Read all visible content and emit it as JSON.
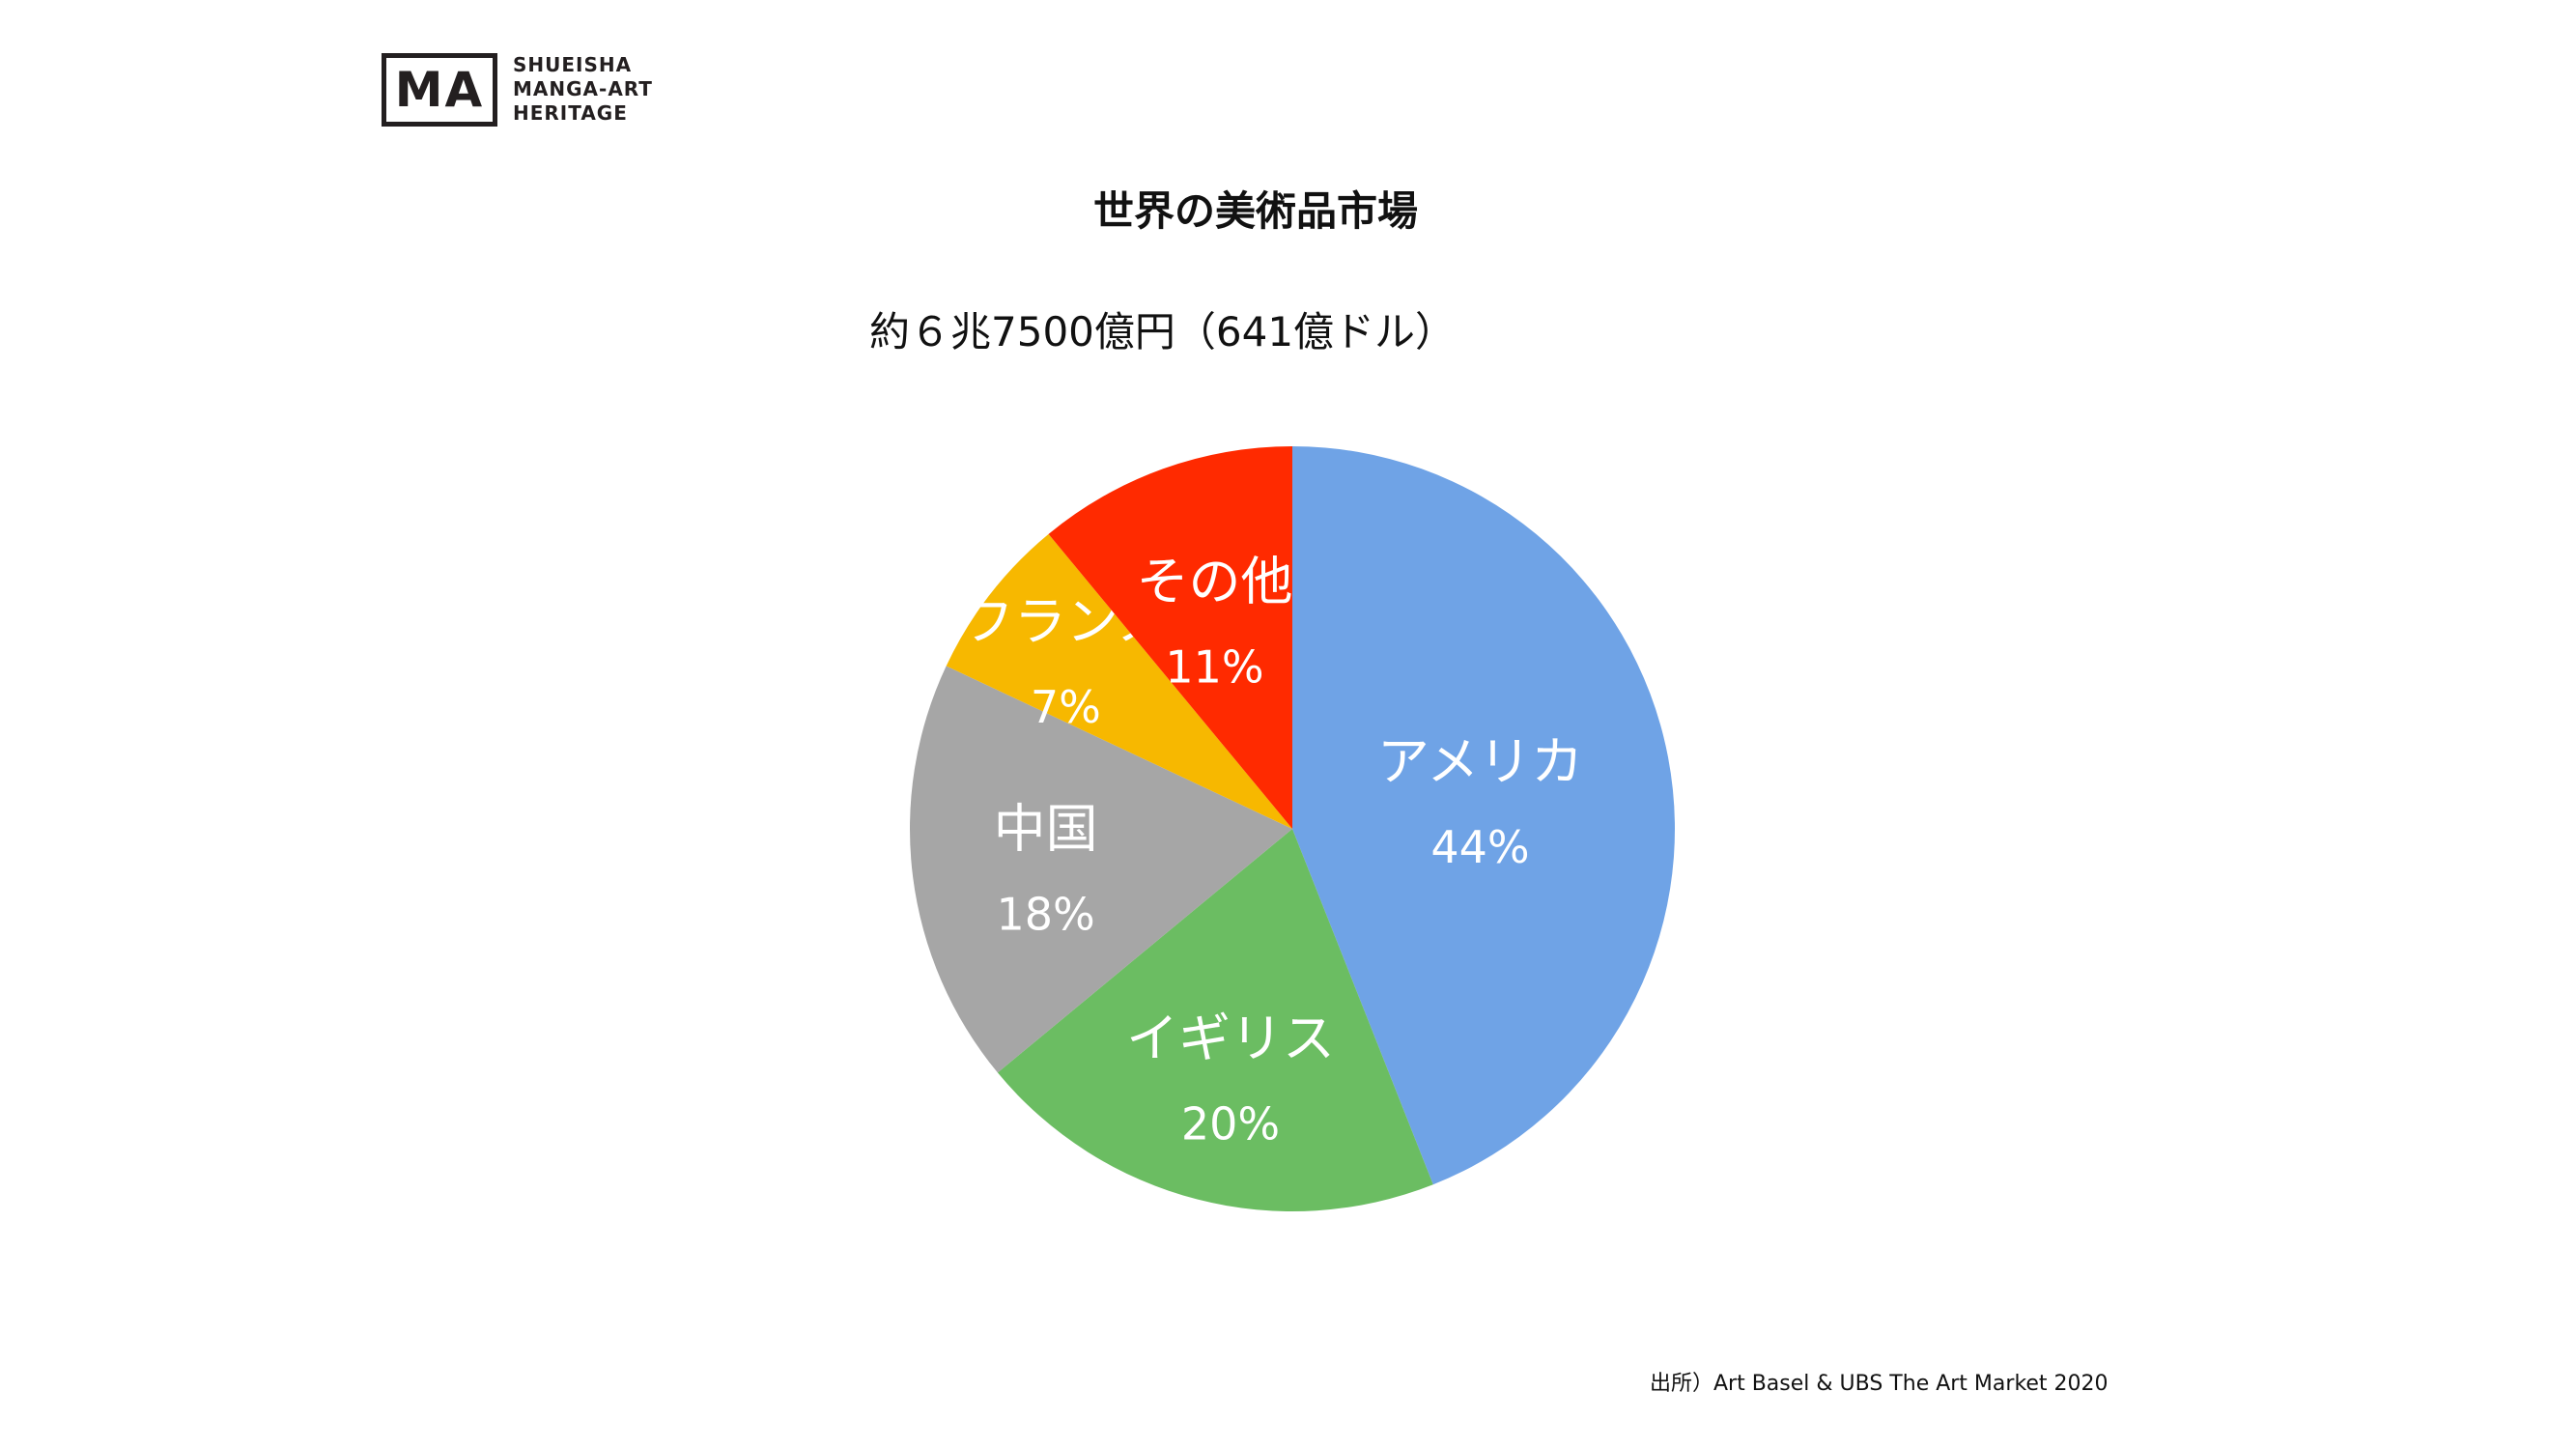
{
  "logo": {
    "mark": "MA",
    "lines": [
      "SHUEISHA",
      "MANGA-ART",
      "HERITAGE"
    ]
  },
  "subtitle": "約６兆7500億円（641億ドル）",
  "source": "出所）Art Basel & UBS The Art Market 2020",
  "chart_data": {
    "type": "pie",
    "title": "世界の美術品市場",
    "categories": [
      "アメリカ",
      "イギリス",
      "中国",
      "フランス",
      "その他"
    ],
    "values": [
      44,
      20,
      18,
      7,
      11
    ],
    "labels": [
      "44%",
      "20%",
      "18%",
      "7%",
      "11%"
    ],
    "colors": [
      "#6fa3e6",
      "#6bbd62",
      "#a6a6a6",
      "#f7b800",
      "#ff2a00"
    ],
    "start": "12 o'clock",
    "direction": "clockwise",
    "legend": "none"
  }
}
